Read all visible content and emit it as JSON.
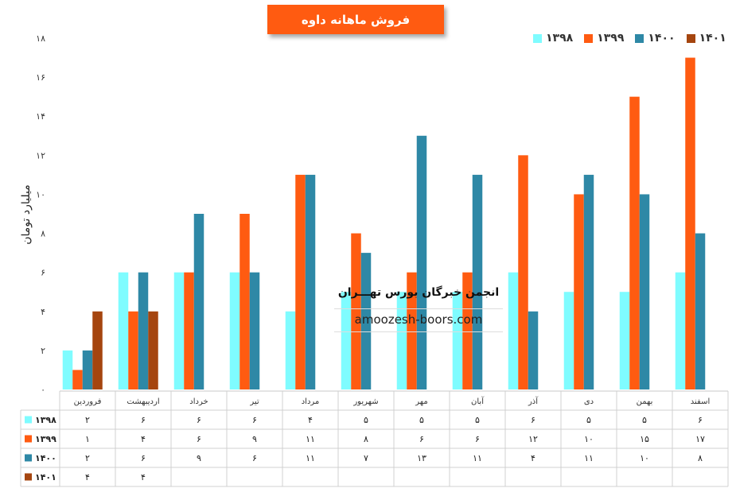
{
  "title": "فروش ماهانه داوه",
  "ylabel": "میلیارد تومان",
  "watermark": {
    "title": "انجمن خبرگان بورس تهـــران",
    "url": "amoozesh-boors.com"
  },
  "colors": {
    "title_bg": "#FF5B11",
    "s1398": "#7FFCFF",
    "s1399": "#FF5B11",
    "s1400": "#2E88A6",
    "s1401": "#A5450F"
  },
  "chart_data": {
    "type": "bar",
    "title": "فروش ماهانه داوه",
    "ylabel": "میلیارد تومان",
    "ylim": [
      0,
      18
    ],
    "yticks": [
      "۰",
      "۲",
      "۴",
      "۶",
      "۸",
      "۱۰",
      "۱۲",
      "۱۴",
      "۱۶",
      "۱۸"
    ],
    "legend_position": "top-right",
    "grid": false,
    "categories": [
      "فروردین",
      "اردیبهشت",
      "خرداد",
      "تیر",
      "مرداد",
      "شهریور",
      "مهر",
      "آبان",
      "آذر",
      "دی",
      "بهمن",
      "اسفند"
    ],
    "series": [
      {
        "name": "۱۳۹۸",
        "color": "#7FFCFF",
        "values": [
          2,
          6,
          6,
          6,
          4,
          5,
          5,
          5,
          6,
          5,
          5,
          6
        ],
        "labels": [
          "۲",
          "۶",
          "۶",
          "۶",
          "۴",
          "۵",
          "۵",
          "۵",
          "۶",
          "۵",
          "۵",
          "۶"
        ]
      },
      {
        "name": "۱۳۹۹",
        "color": "#FF5B11",
        "values": [
          1,
          4,
          6,
          9,
          11,
          8,
          6,
          6,
          12,
          10,
          15,
          17
        ],
        "labels": [
          "۱",
          "۴",
          "۶",
          "۹",
          "۱۱",
          "۸",
          "۶",
          "۶",
          "۱۲",
          "۱۰",
          "۱۵",
          "۱۷"
        ]
      },
      {
        "name": "۱۴۰۰",
        "color": "#2E88A6",
        "values": [
          2,
          6,
          9,
          6,
          11,
          7,
          13,
          11,
          4,
          11,
          10,
          8
        ],
        "labels": [
          "۲",
          "۶",
          "۹",
          "۶",
          "۱۱",
          "۷",
          "۱۳",
          "۱۱",
          "۴",
          "۱۱",
          "۱۰",
          "۸"
        ]
      },
      {
        "name": "۱۴۰۱",
        "color": "#A5450F",
        "values": [
          4,
          4,
          null,
          null,
          null,
          null,
          null,
          null,
          null,
          null,
          null,
          null
        ],
        "labels": [
          "۴",
          "۴",
          "",
          "",
          "",
          "",
          "",
          "",
          "",
          "",
          "",
          ""
        ]
      }
    ]
  }
}
